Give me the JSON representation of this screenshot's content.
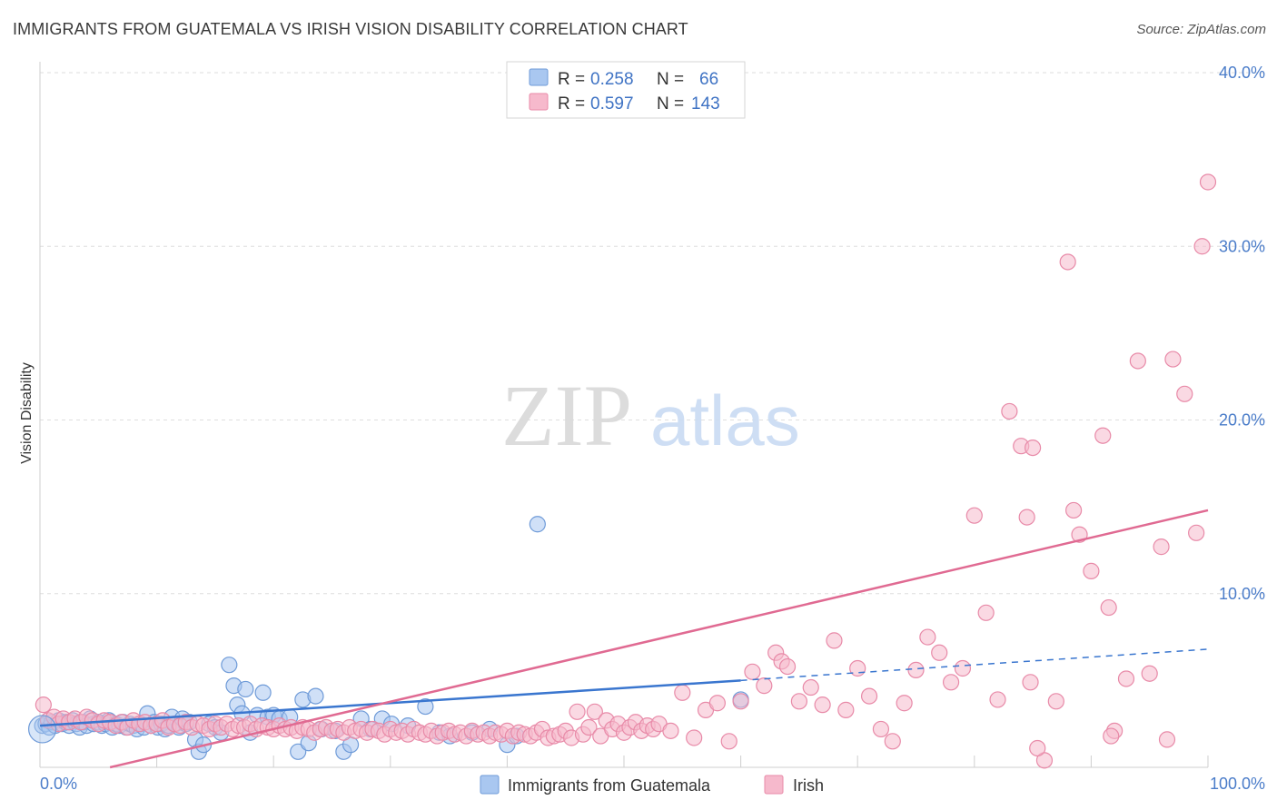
{
  "title": "IMMIGRANTS FROM GUATEMALA VS IRISH VISION DISABILITY CORRELATION CHART",
  "source": "Source: ZipAtlas.com",
  "watermark": {
    "zip": "ZIP",
    "atlas": "atlas"
  },
  "legend": {
    "rows": [
      {
        "r_label": "R =",
        "r_value": "0.258",
        "n_label": "N =",
        "n_value": "66",
        "color": "#a9c7f0",
        "stroke": "#6f9bd8"
      },
      {
        "r_label": "R =",
        "r_value": "0.597",
        "n_label": "N =",
        "n_value": "143",
        "color": "#f6b9cc",
        "stroke": "#e88aa8"
      }
    ]
  },
  "bottom_legend": [
    {
      "label": "Immigrants from Guatemala",
      "color": "#a9c7f0",
      "stroke": "#6f9bd8"
    },
    {
      "label": "Irish",
      "color": "#f6b9cc",
      "stroke": "#e88aa8"
    }
  ],
  "chart_data": {
    "type": "scatter",
    "title": "IMMIGRANTS FROM GUATEMALA VS IRISH VISION DISABILITY CORRELATION CHART",
    "xlabel": "",
    "ylabel": "Vision Disability",
    "xlim": [
      0,
      100
    ],
    "ylim": [
      0,
      40
    ],
    "x_tick_labels": [
      "0.0%",
      "100.0%"
    ],
    "y_ticks": [
      10,
      20,
      30,
      40
    ],
    "y_tick_labels": [
      "10.0%",
      "20.0%",
      "30.0%",
      "40.0%"
    ],
    "grid": true,
    "legend_position": "top-center",
    "series": [
      {
        "name": "Immigrants from Guatemala",
        "color": "#6f9bd8",
        "fill": "#a9c7f0",
        "trend": {
          "x": [
            0,
            60
          ],
          "y": [
            2.4,
            5.0
          ],
          "dashed_to": [
            100,
            6.8
          ]
        },
        "points": [
          [
            0.2,
            2.4
          ],
          [
            0.5,
            2.5
          ],
          [
            0.8,
            2.3
          ],
          [
            1.0,
            2.6
          ],
          [
            1.3,
            2.4
          ],
          [
            1.6,
            2.7
          ],
          [
            1.9,
            2.5
          ],
          [
            2.2,
            2.6
          ],
          [
            2.5,
            2.4
          ],
          [
            2.8,
            2.7
          ],
          [
            3.1,
            2.5
          ],
          [
            3.4,
            2.3
          ],
          [
            3.7,
            2.6
          ],
          [
            4.0,
            2.4
          ],
          [
            4.3,
            2.8
          ],
          [
            4.6,
            2.5
          ],
          [
            5.0,
            2.6
          ],
          [
            5.3,
            2.4
          ],
          [
            5.6,
            2.5
          ],
          [
            5.9,
            2.7
          ],
          [
            6.2,
            2.3
          ],
          [
            6.5,
            2.5
          ],
          [
            6.8,
            2.4
          ],
          [
            7.1,
            2.6
          ],
          [
            7.4,
            2.3
          ],
          [
            7.7,
            2.5
          ],
          [
            8.0,
            2.4
          ],
          [
            8.3,
            2.2
          ],
          [
            8.6,
            2.5
          ],
          [
            8.9,
            2.3
          ],
          [
            9.2,
            3.1
          ],
          [
            9.5,
            2.4
          ],
          [
            9.8,
            2.6
          ],
          [
            10.1,
            2.3
          ],
          [
            10.4,
            2.5
          ],
          [
            10.7,
            2.2
          ],
          [
            11.0,
            2.4
          ],
          [
            11.3,
            2.9
          ],
          [
            11.6,
            2.5
          ],
          [
            11.9,
            2.3
          ],
          [
            12.2,
            2.8
          ],
          [
            12.5,
            2.5
          ],
          [
            12.8,
            2.6
          ],
          [
            13.3,
            1.6
          ],
          [
            13.6,
            0.9
          ],
          [
            14.0,
            1.3
          ],
          [
            14.5,
            2.5
          ],
          [
            15.0,
            2.3
          ],
          [
            15.5,
            2.0
          ],
          [
            16.2,
            5.9
          ],
          [
            16.6,
            4.7
          ],
          [
            16.9,
            3.6
          ],
          [
            17.3,
            3.1
          ],
          [
            17.6,
            4.5
          ],
          [
            18.0,
            2.0
          ],
          [
            18.6,
            3.0
          ],
          [
            19.1,
            4.3
          ],
          [
            19.5,
            2.9
          ],
          [
            20.0,
            3.0
          ],
          [
            20.5,
            2.8
          ],
          [
            21.4,
            2.9
          ],
          [
            22.1,
            0.9
          ],
          [
            22.5,
            3.9
          ],
          [
            23.0,
            1.4
          ],
          [
            23.6,
            4.1
          ],
          [
            24.1,
            2.2
          ],
          [
            25.3,
            2.1
          ],
          [
            26.0,
            0.9
          ],
          [
            26.6,
            1.3
          ],
          [
            27.5,
            2.8
          ],
          [
            28.3,
            2.2
          ],
          [
            29.3,
            2.8
          ],
          [
            30.1,
            2.5
          ],
          [
            31.5,
            2.4
          ],
          [
            33.0,
            3.5
          ],
          [
            34.2,
            2.0
          ],
          [
            35.1,
            1.8
          ],
          [
            37.0,
            2.0
          ],
          [
            38.5,
            2.2
          ],
          [
            40.0,
            1.3
          ],
          [
            40.8,
            1.8
          ],
          [
            42.6,
            14.0
          ],
          [
            60.0,
            3.9
          ]
        ]
      },
      {
        "name": "Irish",
        "color": "#e88aa8",
        "fill": "#f6b9cc",
        "trend": {
          "x": [
            6,
            100
          ],
          "y": [
            0,
            14.8
          ]
        },
        "points": [
          [
            0.3,
            3.6
          ],
          [
            0.7,
            2.7
          ],
          [
            1.2,
            2.9
          ],
          [
            1.6,
            2.5
          ],
          [
            2.0,
            2.8
          ],
          [
            2.5,
            2.6
          ],
          [
            3.0,
            2.8
          ],
          [
            3.5,
            2.6
          ],
          [
            4.0,
            2.9
          ],
          [
            4.5,
            2.7
          ],
          [
            5.0,
            2.5
          ],
          [
            5.5,
            2.7
          ],
          [
            6.0,
            2.6
          ],
          [
            6.5,
            2.4
          ],
          [
            7.0,
            2.6
          ],
          [
            7.5,
            2.3
          ],
          [
            8.0,
            2.7
          ],
          [
            8.5,
            2.5
          ],
          [
            9.0,
            2.6
          ],
          [
            9.5,
            2.4
          ],
          [
            10.0,
            2.5
          ],
          [
            10.5,
            2.7
          ],
          [
            11.0,
            2.3
          ],
          [
            11.5,
            2.5
          ],
          [
            12.0,
            2.4
          ],
          [
            12.5,
            2.6
          ],
          [
            13.0,
            2.3
          ],
          [
            13.5,
            2.5
          ],
          [
            14.0,
            2.4
          ],
          [
            14.5,
            2.2
          ],
          [
            15.0,
            2.5
          ],
          [
            15.5,
            2.3
          ],
          [
            16.0,
            2.5
          ],
          [
            16.5,
            2.2
          ],
          [
            17.0,
            2.4
          ],
          [
            17.5,
            2.3
          ],
          [
            18.0,
            2.5
          ],
          [
            18.5,
            2.2
          ],
          [
            19.0,
            2.4
          ],
          [
            19.5,
            2.3
          ],
          [
            20.0,
            2.2
          ],
          [
            20.5,
            2.4
          ],
          [
            21.0,
            2.2
          ],
          [
            21.5,
            2.3
          ],
          [
            22.0,
            2.1
          ],
          [
            22.5,
            2.3
          ],
          [
            23.0,
            2.2
          ],
          [
            23.5,
            2.0
          ],
          [
            24.0,
            2.2
          ],
          [
            24.5,
            2.3
          ],
          [
            25.0,
            2.1
          ],
          [
            25.5,
            2.2
          ],
          [
            26.0,
            2.0
          ],
          [
            26.5,
            2.3
          ],
          [
            27.0,
            2.1
          ],
          [
            27.5,
            2.2
          ],
          [
            28.0,
            2.0
          ],
          [
            28.5,
            2.2
          ],
          [
            29.0,
            2.1
          ],
          [
            29.5,
            1.9
          ],
          [
            30.0,
            2.2
          ],
          [
            30.5,
            2.0
          ],
          [
            31.0,
            2.1
          ],
          [
            31.5,
            1.9
          ],
          [
            32.0,
            2.2
          ],
          [
            32.5,
            2.0
          ],
          [
            33.0,
            1.9
          ],
          [
            33.5,
            2.1
          ],
          [
            34.0,
            1.8
          ],
          [
            34.5,
            2.0
          ],
          [
            35.0,
            2.1
          ],
          [
            35.5,
            1.9
          ],
          [
            36.0,
            2.0
          ],
          [
            36.5,
            1.8
          ],
          [
            37.0,
            2.1
          ],
          [
            37.5,
            1.9
          ],
          [
            38.0,
            2.0
          ],
          [
            38.5,
            1.8
          ],
          [
            39.0,
            2.0
          ],
          [
            39.5,
            1.9
          ],
          [
            40.0,
            2.1
          ],
          [
            40.5,
            1.8
          ],
          [
            41.0,
            2.0
          ],
          [
            41.5,
            1.9
          ],
          [
            42.0,
            1.8
          ],
          [
            42.5,
            2.0
          ],
          [
            43.0,
            2.2
          ],
          [
            43.5,
            1.7
          ],
          [
            44.0,
            1.8
          ],
          [
            44.5,
            1.9
          ],
          [
            45.0,
            2.1
          ],
          [
            45.5,
            1.7
          ],
          [
            46.0,
            3.2
          ],
          [
            46.5,
            1.9
          ],
          [
            47.0,
            2.3
          ],
          [
            47.5,
            3.2
          ],
          [
            48.0,
            1.8
          ],
          [
            48.5,
            2.7
          ],
          [
            49.0,
            2.2
          ],
          [
            49.5,
            2.5
          ],
          [
            50.0,
            2.0
          ],
          [
            50.5,
            2.3
          ],
          [
            51.0,
            2.6
          ],
          [
            51.5,
            2.1
          ],
          [
            52.0,
            2.4
          ],
          [
            52.5,
            2.2
          ],
          [
            53.0,
            2.5
          ],
          [
            54.0,
            2.1
          ],
          [
            55.0,
            4.3
          ],
          [
            56.0,
            1.7
          ],
          [
            57.0,
            3.3
          ],
          [
            58.0,
            3.7
          ],
          [
            59.0,
            1.5
          ],
          [
            60.0,
            3.8
          ],
          [
            61.0,
            5.5
          ],
          [
            62.0,
            4.7
          ],
          [
            63.0,
            6.6
          ],
          [
            63.5,
            6.1
          ],
          [
            64.0,
            5.8
          ],
          [
            65.0,
            3.8
          ],
          [
            66.0,
            4.6
          ],
          [
            67.0,
            3.6
          ],
          [
            68.0,
            7.3
          ],
          [
            69.0,
            3.3
          ],
          [
            70.0,
            5.7
          ],
          [
            71.0,
            4.1
          ],
          [
            72.0,
            2.2
          ],
          [
            73.0,
            1.5
          ],
          [
            74.0,
            3.7
          ],
          [
            75.0,
            5.6
          ],
          [
            76.0,
            7.5
          ],
          [
            77.0,
            6.6
          ],
          [
            78.0,
            4.9
          ],
          [
            79.0,
            5.7
          ],
          [
            80.0,
            14.5
          ],
          [
            81.0,
            8.9
          ],
          [
            82.0,
            3.9
          ],
          [
            83.0,
            20.5
          ],
          [
            84.0,
            18.5
          ],
          [
            84.5,
            14.4
          ],
          [
            85.0,
            18.4
          ],
          [
            86.0,
            0.4
          ],
          [
            87.0,
            3.8
          ],
          [
            88.0,
            29.1
          ],
          [
            88.5,
            14.8
          ],
          [
            89.0,
            13.4
          ],
          [
            90.0,
            11.3
          ],
          [
            91.0,
            19.1
          ],
          [
            91.5,
            9.2
          ],
          [
            92.0,
            2.1
          ],
          [
            93.0,
            5.1
          ],
          [
            94.0,
            23.4
          ],
          [
            95.0,
            5.4
          ],
          [
            96.0,
            12.7
          ],
          [
            97.0,
            23.5
          ],
          [
            98.0,
            21.5
          ],
          [
            99.0,
            13.5
          ],
          [
            99.5,
            30.0
          ],
          [
            100.0,
            33.7
          ],
          [
            84.8,
            4.9
          ],
          [
            85.4,
            1.1
          ],
          [
            96.5,
            1.6
          ],
          [
            91.7,
            1.8
          ]
        ]
      }
    ]
  }
}
